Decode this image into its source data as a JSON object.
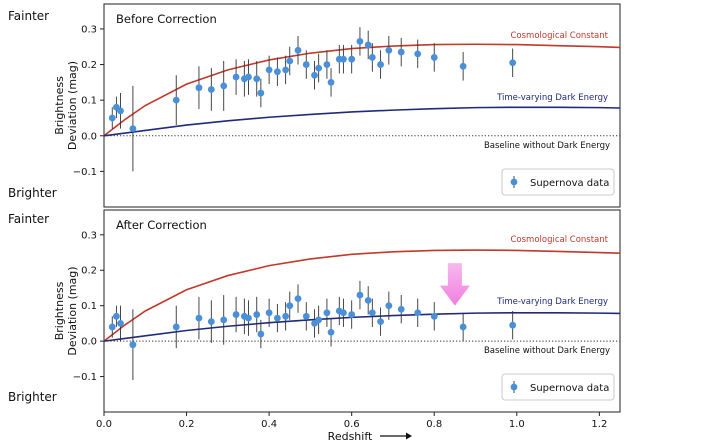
{
  "side_labels": {
    "top_fainter": "Fainter",
    "top_brighter": "Brighter",
    "bottom_fainter": "Fainter",
    "bottom_brighter": "Brighter"
  },
  "colors": {
    "lcdm": "#c0392b",
    "dark_energy": "#1f2a7a",
    "data": "#4a90d9",
    "errorbar": "#333333",
    "arrow": "#f07fe0"
  },
  "chart_data": [
    {
      "type": "scatter",
      "title": "Before Correction",
      "xlabel": "",
      "ylabel": "Brightness Deviation (mag)",
      "ylabel_lines": [
        "Brightness",
        "Deviation (mag)"
      ],
      "xlim": [
        0.0,
        1.25
      ],
      "ylim": [
        -0.2,
        0.37
      ],
      "yticks": [
        -0.1,
        0.0,
        0.1,
        0.2,
        0.3
      ],
      "ytick_labels": [
        "−0.1",
        "0.0",
        "0.1",
        "0.2",
        "0.3"
      ],
      "baseline_label": "Baseline without Dark Energy",
      "legend": "Supernova data",
      "curves": [
        {
          "name": "Cosmological Constant",
          "label_x": 1.0,
          "label_y": 0.275,
          "points": [
            [
              0,
              0
            ],
            [
              0.05,
              0.045
            ],
            [
              0.1,
              0.085
            ],
            [
              0.2,
              0.145
            ],
            [
              0.3,
              0.185
            ],
            [
              0.4,
              0.213
            ],
            [
              0.5,
              0.232
            ],
            [
              0.6,
              0.245
            ],
            [
              0.7,
              0.252
            ],
            [
              0.8,
              0.256
            ],
            [
              0.9,
              0.257
            ],
            [
              1.0,
              0.256
            ],
            [
              1.1,
              0.253
            ],
            [
              1.2,
              0.25
            ],
            [
              1.25,
              0.248
            ]
          ]
        },
        {
          "name": "Time-varying Dark Energy",
          "label_x": 1.0,
          "label_y": 0.1,
          "points": [
            [
              0,
              0
            ],
            [
              0.1,
              0.015
            ],
            [
              0.2,
              0.03
            ],
            [
              0.3,
              0.042
            ],
            [
              0.4,
              0.052
            ],
            [
              0.5,
              0.06
            ],
            [
              0.6,
              0.067
            ],
            [
              0.7,
              0.072
            ],
            [
              0.8,
              0.076
            ],
            [
              0.9,
              0.079
            ],
            [
              1.0,
              0.08
            ],
            [
              1.1,
              0.08
            ],
            [
              1.2,
              0.079
            ],
            [
              1.25,
              0.078
            ]
          ]
        }
      ],
      "series": [
        {
          "name": "Supernova data",
          "points": [
            {
              "x": 0.02,
              "y": 0.05,
              "err": 0.03
            },
            {
              "x": 0.03,
              "y": 0.08,
              "err": 0.03
            },
            {
              "x": 0.04,
              "y": 0.07,
              "err": 0.05
            },
            {
              "x": 0.07,
              "y": 0.02,
              "err": 0.12
            },
            {
              "x": 0.175,
              "y": 0.1,
              "err": 0.07
            },
            {
              "x": 0.23,
              "y": 0.135,
              "err": 0.06
            },
            {
              "x": 0.26,
              "y": 0.13,
              "err": 0.06
            },
            {
              "x": 0.29,
              "y": 0.14,
              "err": 0.07
            },
            {
              "x": 0.32,
              "y": 0.165,
              "err": 0.05
            },
            {
              "x": 0.34,
              "y": 0.16,
              "err": 0.05
            },
            {
              "x": 0.35,
              "y": 0.165,
              "err": 0.05
            },
            {
              "x": 0.37,
              "y": 0.16,
              "err": 0.05
            },
            {
              "x": 0.38,
              "y": 0.12,
              "err": 0.04
            },
            {
              "x": 0.4,
              "y": 0.185,
              "err": 0.04
            },
            {
              "x": 0.42,
              "y": 0.18,
              "err": 0.04
            },
            {
              "x": 0.44,
              "y": 0.185,
              "err": 0.04
            },
            {
              "x": 0.45,
              "y": 0.21,
              "err": 0.04
            },
            {
              "x": 0.47,
              "y": 0.24,
              "err": 0.04
            },
            {
              "x": 0.49,
              "y": 0.2,
              "err": 0.04
            },
            {
              "x": 0.51,
              "y": 0.17,
              "err": 0.04
            },
            {
              "x": 0.52,
              "y": 0.19,
              "err": 0.04
            },
            {
              "x": 0.54,
              "y": 0.2,
              "err": 0.04
            },
            {
              "x": 0.55,
              "y": 0.15,
              "err": 0.04
            },
            {
              "x": 0.57,
              "y": 0.215,
              "err": 0.04
            },
            {
              "x": 0.58,
              "y": 0.215,
              "err": 0.04
            },
            {
              "x": 0.6,
              "y": 0.215,
              "err": 0.04
            },
            {
              "x": 0.62,
              "y": 0.265,
              "err": 0.04
            },
            {
              "x": 0.64,
              "y": 0.255,
              "err": 0.04
            },
            {
              "x": 0.65,
              "y": 0.22,
              "err": 0.04
            },
            {
              "x": 0.67,
              "y": 0.2,
              "err": 0.04
            },
            {
              "x": 0.69,
              "y": 0.24,
              "err": 0.04
            },
            {
              "x": 0.72,
              "y": 0.235,
              "err": 0.04
            },
            {
              "x": 0.76,
              "y": 0.23,
              "err": 0.04
            },
            {
              "x": 0.8,
              "y": 0.22,
              "err": 0.04
            },
            {
              "x": 0.87,
              "y": 0.195,
              "err": 0.04
            },
            {
              "x": 0.99,
              "y": 0.205,
              "err": 0.04
            }
          ]
        }
      ]
    },
    {
      "type": "scatter",
      "title": "After Correction",
      "xlabel": "Redshift",
      "ylabel": "Brightness Deviation (mag)",
      "ylabel_lines": [
        "Brightness",
        "Deviation (mag)"
      ],
      "xlim": [
        0.0,
        1.25
      ],
      "ylim": [
        -0.2,
        0.37
      ],
      "xticks": [
        0.0,
        0.2,
        0.4,
        0.6,
        0.8,
        1.0,
        1.2
      ],
      "xtick_labels": [
        "0.0",
        "0.2",
        "0.4",
        "0.6",
        "0.8",
        "1.0",
        "1.2"
      ],
      "yticks": [
        -0.1,
        0.0,
        0.1,
        0.2,
        0.3
      ],
      "ytick_labels": [
        "−0.1",
        "0.0",
        "0.1",
        "0.2",
        "0.3"
      ],
      "baseline_label": "Baseline without Dark Energy",
      "legend": "Supernova data",
      "arrow": {
        "x": 0.85,
        "y_from": 0.22,
        "y_to": 0.1
      },
      "curves": [
        {
          "name": "Cosmological Constant",
          "label_x": 1.0,
          "label_y": 0.28,
          "points": [
            [
              0,
              0
            ],
            [
              0.05,
              0.045
            ],
            [
              0.1,
              0.085
            ],
            [
              0.2,
              0.145
            ],
            [
              0.3,
              0.185
            ],
            [
              0.4,
              0.213
            ],
            [
              0.5,
              0.232
            ],
            [
              0.6,
              0.245
            ],
            [
              0.7,
              0.252
            ],
            [
              0.8,
              0.256
            ],
            [
              0.9,
              0.257
            ],
            [
              1.0,
              0.256
            ],
            [
              1.1,
              0.253
            ],
            [
              1.2,
              0.25
            ],
            [
              1.25,
              0.248
            ]
          ]
        },
        {
          "name": "Time-varying Dark Energy",
          "label_x": 1.0,
          "label_y": 0.105,
          "points": [
            [
              0,
              0
            ],
            [
              0.1,
              0.015
            ],
            [
              0.2,
              0.03
            ],
            [
              0.3,
              0.042
            ],
            [
              0.4,
              0.052
            ],
            [
              0.5,
              0.06
            ],
            [
              0.6,
              0.067
            ],
            [
              0.7,
              0.072
            ],
            [
              0.8,
              0.076
            ],
            [
              0.9,
              0.079
            ],
            [
              1.0,
              0.08
            ],
            [
              1.1,
              0.08
            ],
            [
              1.2,
              0.079
            ],
            [
              1.25,
              0.078
            ]
          ]
        }
      ],
      "series": [
        {
          "name": "Supernova data",
          "points": [
            {
              "x": 0.02,
              "y": 0.04,
              "err": 0.03
            },
            {
              "x": 0.03,
              "y": 0.07,
              "err": 0.03
            },
            {
              "x": 0.04,
              "y": 0.05,
              "err": 0.05
            },
            {
              "x": 0.07,
              "y": -0.01,
              "err": 0.1
            },
            {
              "x": 0.175,
              "y": 0.04,
              "err": 0.06
            },
            {
              "x": 0.23,
              "y": 0.065,
              "err": 0.06
            },
            {
              "x": 0.26,
              "y": 0.055,
              "err": 0.06
            },
            {
              "x": 0.29,
              "y": 0.06,
              "err": 0.07
            },
            {
              "x": 0.32,
              "y": 0.075,
              "err": 0.05
            },
            {
              "x": 0.34,
              "y": 0.07,
              "err": 0.05
            },
            {
              "x": 0.35,
              "y": 0.065,
              "err": 0.05
            },
            {
              "x": 0.37,
              "y": 0.075,
              "err": 0.05
            },
            {
              "x": 0.38,
              "y": 0.02,
              "err": 0.04
            },
            {
              "x": 0.4,
              "y": 0.08,
              "err": 0.04
            },
            {
              "x": 0.42,
              "y": 0.065,
              "err": 0.04
            },
            {
              "x": 0.44,
              "y": 0.07,
              "err": 0.04
            },
            {
              "x": 0.45,
              "y": 0.1,
              "err": 0.04
            },
            {
              "x": 0.47,
              "y": 0.12,
              "err": 0.04
            },
            {
              "x": 0.49,
              "y": 0.07,
              "err": 0.04
            },
            {
              "x": 0.51,
              "y": 0.05,
              "err": 0.04
            },
            {
              "x": 0.52,
              "y": 0.06,
              "err": 0.04
            },
            {
              "x": 0.54,
              "y": 0.08,
              "err": 0.04
            },
            {
              "x": 0.55,
              "y": 0.025,
              "err": 0.04
            },
            {
              "x": 0.57,
              "y": 0.085,
              "err": 0.04
            },
            {
              "x": 0.58,
              "y": 0.08,
              "err": 0.04
            },
            {
              "x": 0.6,
              "y": 0.075,
              "err": 0.04
            },
            {
              "x": 0.62,
              "y": 0.13,
              "err": 0.04
            },
            {
              "x": 0.64,
              "y": 0.115,
              "err": 0.04
            },
            {
              "x": 0.65,
              "y": 0.08,
              "err": 0.04
            },
            {
              "x": 0.67,
              "y": 0.055,
              "err": 0.04
            },
            {
              "x": 0.69,
              "y": 0.1,
              "err": 0.04
            },
            {
              "x": 0.72,
              "y": 0.09,
              "err": 0.04
            },
            {
              "x": 0.76,
              "y": 0.08,
              "err": 0.04
            },
            {
              "x": 0.8,
              "y": 0.07,
              "err": 0.04
            },
            {
              "x": 0.87,
              "y": 0.04,
              "err": 0.04
            },
            {
              "x": 0.99,
              "y": 0.045,
              "err": 0.04
            }
          ]
        }
      ]
    }
  ]
}
